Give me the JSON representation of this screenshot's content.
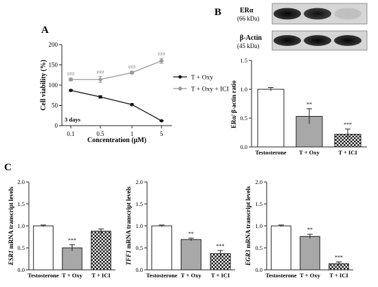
{
  "panels": {
    "A": "A",
    "B": "B",
    "C": "C"
  },
  "chart_data": [
    {
      "id": "A",
      "type": "line",
      "categories": [
        "0.1",
        "0.5",
        "1",
        "5"
      ],
      "xlabel": "Concentration (μM)",
      "ylabel": "Cell viability (%)",
      "ylim": [
        0,
        200
      ],
      "yticks": [
        "0",
        "50",
        "100",
        "150",
        "200"
      ],
      "annotation": "3 days",
      "legend_position": "right",
      "series": [
        {
          "name": "T + Oxy",
          "values": [
            87,
            71,
            52,
            12
          ],
          "errors": [
            2,
            3,
            2,
            1
          ],
          "color": "#111111",
          "marker": "circle",
          "labels": [
            "",
            "",
            "",
            ""
          ]
        },
        {
          "name": "T + Oxy + ICI",
          "values": [
            114,
            114,
            131,
            160
          ],
          "errors": [
            3,
            7,
            3,
            6
          ],
          "color": "#999999",
          "marker": "diamond",
          "labels": [
            "###",
            "###",
            "###",
            "###"
          ]
        }
      ]
    },
    {
      "id": "B",
      "type": "bar",
      "categories": [
        "Testosterone",
        "T + Oxy",
        "T + ICI"
      ],
      "ylabel": "ERα/ β-actin ratio",
      "ylim": [
        0,
        1.5
      ],
      "yticks": [
        "0.0",
        "0.5",
        "1.0",
        "1.5"
      ],
      "values": [
        1.0,
        0.53,
        0.22
      ],
      "errors": [
        0.03,
        0.13,
        0.09
      ],
      "labels": [
        "",
        "**",
        "***"
      ]
    },
    {
      "id": "C1",
      "type": "bar",
      "categories": [
        "Testosterone",
        "T + Oxy",
        "T + ICI"
      ],
      "ylabel_gene": "ESR1",
      "ylabel_rest": " mRNA transcript levels",
      "ylim": [
        0,
        2.0
      ],
      "yticks": [
        "0.0",
        "0.5",
        "1.0",
        "1.5",
        "2.0"
      ],
      "values": [
        1.0,
        0.5,
        0.88
      ],
      "errors": [
        0.02,
        0.07,
        0.05
      ],
      "labels": [
        "",
        "***",
        ""
      ]
    },
    {
      "id": "C2",
      "type": "bar",
      "categories": [
        "Testosterone",
        "T + Oxy",
        "T + ICI"
      ],
      "ylabel_gene": "TFF1",
      "ylabel_rest": " mRNA transcript levels",
      "ylim": [
        0,
        2.0
      ],
      "yticks": [
        "0.0",
        "0.5",
        "1.0",
        "1.5",
        "2.0"
      ],
      "values": [
        1.0,
        0.69,
        0.37
      ],
      "errors": [
        0.02,
        0.03,
        0.07
      ],
      "labels": [
        "",
        "**",
        "***"
      ]
    },
    {
      "id": "C3",
      "type": "bar",
      "categories": [
        "Testosterone",
        "T + Oxy",
        "T + ICI"
      ],
      "ylabel_gene": "EGR3",
      "ylabel_rest": " mRNA transcript levels",
      "ylim": [
        0,
        2.0
      ],
      "yticks": [
        "0.0",
        "0.5",
        "1.0",
        "1.5",
        "2.0"
      ],
      "values": [
        1.0,
        0.76,
        0.14
      ],
      "errors": [
        0.02,
        0.05,
        0.04
      ],
      "labels": [
        "",
        "**",
        "***"
      ]
    }
  ],
  "blot": {
    "rows": [
      {
        "name": "ERα",
        "size": "(66 kDa)",
        "intensity": [
          1.0,
          0.95,
          0.12
        ]
      },
      {
        "name": "β-Actin",
        "size": "(45 kDa)",
        "intensity": [
          1.0,
          1.0,
          1.0
        ]
      }
    ]
  },
  "colors": {
    "bar_fills": [
      "#ffffff",
      "#a8a8a8",
      "checker"
    ],
    "text": "#222222"
  }
}
